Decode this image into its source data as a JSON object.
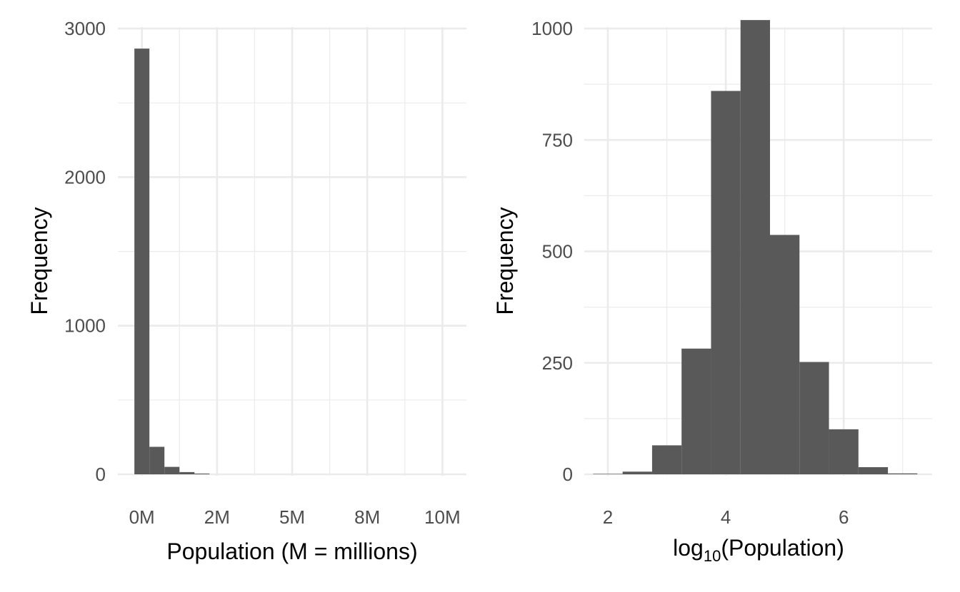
{
  "chart_data": [
    {
      "type": "bar",
      "subtype": "histogram",
      "xlabel": "Population (M = millions)",
      "ylabel": "Frequency",
      "x_tick_labels": [
        "0M",
        "2M",
        "5M",
        "8M",
        "10M"
      ],
      "y_tick_labels": [
        "0",
        "1000",
        "2000",
        "3000"
      ],
      "x_ticks": [
        0,
        2500000,
        5000000,
        7500000,
        10000000
      ],
      "y_ticks": [
        0,
        1000,
        2000,
        3000
      ],
      "xlim": [
        -800000,
        10800000
      ],
      "ylim": [
        0,
        3000
      ],
      "bin_width": 500000,
      "bins": [
        {
          "x0": -250000,
          "x1": 250000,
          "count": 2865
        },
        {
          "x0": 250000,
          "x1": 750000,
          "count": 185
        },
        {
          "x0": 750000,
          "x1": 1250000,
          "count": 50
        },
        {
          "x0": 1250000,
          "x1": 1750000,
          "count": 15
        },
        {
          "x0": 1750000,
          "x1": 2250000,
          "count": 5
        }
      ],
      "grid": true,
      "bar_color": "#595959"
    },
    {
      "type": "bar",
      "subtype": "histogram",
      "xlabel": "log10(Population)",
      "xlabel_base": "log",
      "xlabel_sub": "10",
      "xlabel_tail": "(Population)",
      "ylabel": "Frequency",
      "x_tick_labels": [
        "2",
        "4",
        "6"
      ],
      "y_tick_labels": [
        "0",
        "250",
        "500",
        "750",
        "1000"
      ],
      "x_ticks": [
        2,
        4,
        6
      ],
      "y_ticks": [
        0,
        250,
        500,
        750,
        1000
      ],
      "xlim": [
        1.6,
        7.5
      ],
      "ylim": [
        0,
        1000
      ],
      "bin_width": 0.5,
      "bins": [
        {
          "x0": 1.75,
          "x1": 2.25,
          "count": 1
        },
        {
          "x0": 2.25,
          "x1": 2.75,
          "count": 6
        },
        {
          "x0": 2.75,
          "x1": 3.25,
          "count": 65
        },
        {
          "x0": 3.25,
          "x1": 3.75,
          "count": 282
        },
        {
          "x0": 3.75,
          "x1": 4.25,
          "count": 860
        },
        {
          "x0": 4.25,
          "x1": 4.75,
          "count": 1019
        },
        {
          "x0": 4.75,
          "x1": 5.25,
          "count": 537
        },
        {
          "x0": 5.25,
          "x1": 5.75,
          "count": 252
        },
        {
          "x0": 5.75,
          "x1": 6.25,
          "count": 101
        },
        {
          "x0": 6.25,
          "x1": 6.75,
          "count": 16
        },
        {
          "x0": 6.75,
          "x1": 7.25,
          "count": 2
        }
      ],
      "grid": true,
      "bar_color": "#595959"
    }
  ]
}
